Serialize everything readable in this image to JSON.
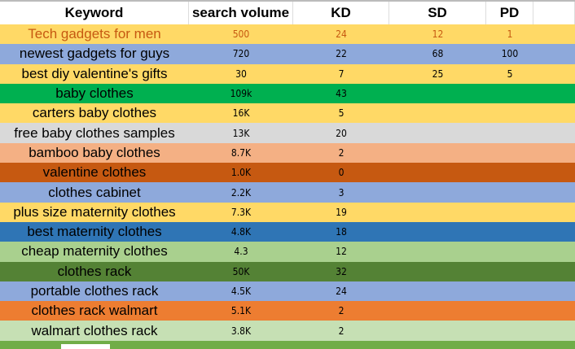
{
  "headers": [
    "Keyword",
    "search volume",
    "KD",
    "SD",
    "PD"
  ],
  "rows": [
    {
      "keyword": "Tech gadgets for men",
      "volume": "500",
      "kd": "24",
      "sd": "12",
      "pd": "1",
      "bg": "#FFD966",
      "fg": "#C65911"
    },
    {
      "keyword": "newest gadgets for guys",
      "volume": "720",
      "kd": "22",
      "sd": "68",
      "pd": "100",
      "bg": "#8EA9DB",
      "fg": "#000000"
    },
    {
      "keyword": "best diy valentine's gifts",
      "volume": "30",
      "kd": "7",
      "sd": "25",
      "pd": "5",
      "bg": "#FFD966",
      "fg": "#000000"
    },
    {
      "keyword": "baby clothes",
      "volume": "109k",
      "kd": "43",
      "sd": "",
      "pd": "",
      "bg": "#00B050",
      "fg": "#000000"
    },
    {
      "keyword": "carters baby clothes",
      "volume": "16K",
      "kd": "5",
      "sd": "",
      "pd": "",
      "bg": "#FFD966",
      "fg": "#000000"
    },
    {
      "keyword": "free baby clothes samples",
      "volume": "13K",
      "kd": "20",
      "sd": "",
      "pd": "",
      "bg": "#D9D9D9",
      "fg": "#000000"
    },
    {
      "keyword": "bamboo baby clothes",
      "volume": "8.7K",
      "kd": "2",
      "sd": "",
      "pd": "",
      "bg": "#F4B084",
      "fg": "#000000"
    },
    {
      "keyword": "valentine clothes",
      "volume": "1.0K",
      "kd": "0",
      "sd": "",
      "pd": "",
      "bg": "#C65911",
      "fg": "#000000"
    },
    {
      "keyword": "clothes cabinet",
      "volume": "2.2K",
      "kd": "3",
      "sd": "",
      "pd": "",
      "bg": "#8EA9DB",
      "fg": "#000000"
    },
    {
      "keyword": "plus size maternity clothes",
      "volume": "7.3K",
      "kd": "19",
      "sd": "",
      "pd": "",
      "bg": "#FFD966",
      "fg": "#000000"
    },
    {
      "keyword": "best maternity clothes",
      "volume": "4.8K",
      "kd": "18",
      "sd": "",
      "pd": "",
      "bg": "#2F75B5",
      "fg": "#000000"
    },
    {
      "keyword": "cheap maternity clothes",
      "volume": "4.3",
      "kd": "12",
      "sd": "",
      "pd": "",
      "bg": "#A9D08E",
      "fg": "#000000"
    },
    {
      "keyword": "clothes rack",
      "volume": "50K",
      "kd": "32",
      "sd": "",
      "pd": "",
      "bg": "#548235",
      "fg": "#000000"
    },
    {
      "keyword": "portable clothes rack",
      "volume": "4.5K",
      "kd": "24",
      "sd": "",
      "pd": "",
      "bg": "#8EA9DB",
      "fg": "#000000"
    },
    {
      "keyword": "clothes rack walmart",
      "volume": "5.1K",
      "kd": "2",
      "sd": "",
      "pd": "",
      "bg": "#ED7D31",
      "fg": "#000000"
    },
    {
      "keyword": "walmart clothes rack",
      "volume": "3.8K",
      "kd": "2",
      "sd": "",
      "pd": "",
      "bg": "#C6E0B4",
      "fg": "#000000"
    }
  ]
}
